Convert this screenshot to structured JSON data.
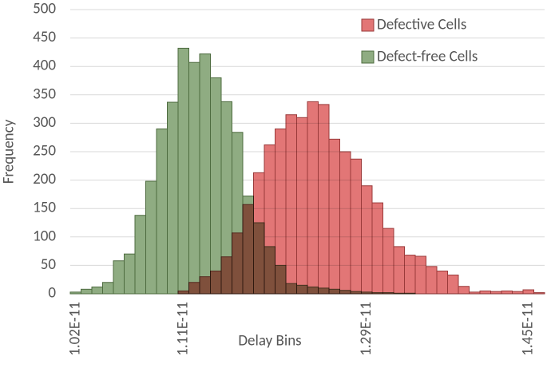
{
  "chart_data": {
    "type": "bar",
    "x_label": "Delay Bins",
    "y_label": "Frequency",
    "categories": [
      "1.02E-11",
      null,
      null,
      null,
      null,
      null,
      null,
      null,
      null,
      null,
      "1.11E-11",
      null,
      null,
      null,
      null,
      null,
      null,
      null,
      null,
      null,
      null,
      null,
      null,
      null,
      null,
      null,
      null,
      "1.29E-11",
      null,
      null,
      null,
      null,
      null,
      null,
      null,
      null,
      null,
      null,
      null,
      null,
      null,
      null,
      "1.45E-11",
      null
    ],
    "series": [
      {
        "name": "Defect-free Cells",
        "color": "#8fac82",
        "edge_color": "#4d6b3f",
        "values": [
          3,
          8,
          12,
          20,
          58,
          70,
          138,
          198,
          290,
          337,
          432,
          407,
          422,
          380,
          338,
          284,
          172,
          125,
          83,
          50,
          18,
          15,
          12,
          10,
          8,
          6,
          4,
          3,
          2,
          2,
          1,
          1,
          0,
          0,
          0,
          0,
          0,
          0,
          0,
          0,
          0,
          0,
          0,
          0
        ]
      },
      {
        "name": "Defective Cells",
        "color": "#e27676",
        "edge_color": "#9a3a3a",
        "values": [
          0,
          0,
          0,
          0,
          0,
          0,
          0,
          0,
          0,
          0,
          5,
          20,
          30,
          40,
          65,
          107,
          157,
          213,
          262,
          290,
          315,
          310,
          338,
          333,
          272,
          250,
          237,
          190,
          160,
          115,
          83,
          68,
          66,
          48,
          40,
          33,
          13,
          3,
          5,
          4,
          5,
          4,
          7,
          2
        ]
      }
    ],
    "ylim": [
      0,
      500
    ],
    "yticks": [
      0,
      50,
      100,
      150,
      200,
      250,
      300,
      350,
      400,
      450,
      500
    ],
    "grid": true,
    "legend": "upper right"
  }
}
